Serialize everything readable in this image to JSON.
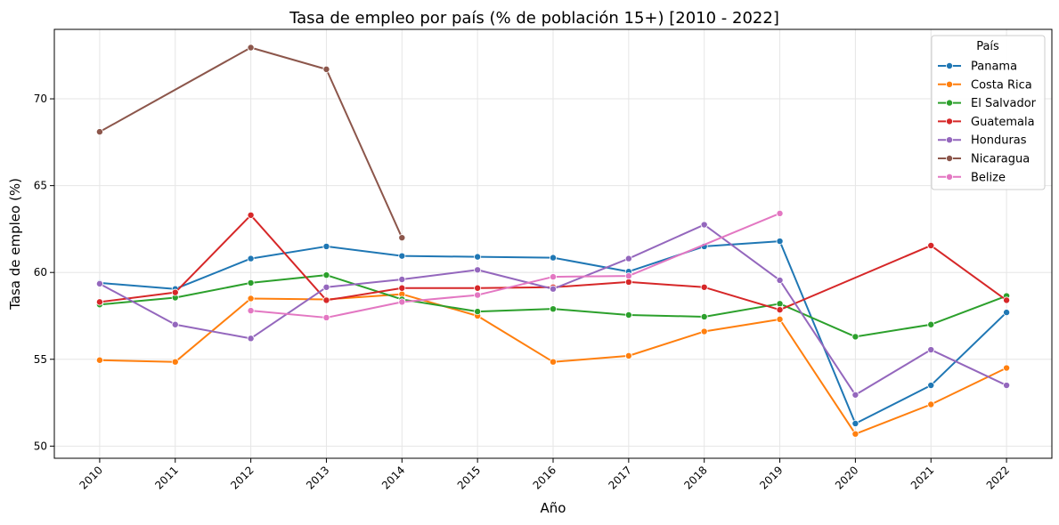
{
  "chart_data": {
    "type": "line",
    "title": "Tasa de empleo por país (% de población 15+) [2010 - 2022]",
    "xlabel": "Año",
    "ylabel": "Tasa de empleo (%)",
    "x": [
      2010,
      2011,
      2012,
      2013,
      2014,
      2015,
      2016,
      2017,
      2018,
      2019,
      2020,
      2021,
      2022
    ],
    "xlim": [
      2009.4,
      2022.6
    ],
    "ylim": [
      49.3,
      74.0
    ],
    "yticks": [
      50,
      55,
      60,
      65,
      70
    ],
    "grid": true,
    "legend": {
      "title": "País",
      "position": "top-right"
    },
    "series": [
      {
        "name": "Panama",
        "color": "#1f77b4",
        "values": [
          59.4,
          59.05,
          60.8,
          61.5,
          60.95,
          60.9,
          60.85,
          60.05,
          61.5,
          61.8,
          51.3,
          53.5,
          57.7
        ]
      },
      {
        "name": "Costa Rica",
        "color": "#ff7f0e",
        "values": [
          54.95,
          54.85,
          58.5,
          58.45,
          58.75,
          57.5,
          54.85,
          55.2,
          56.6,
          57.3,
          50.7,
          52.4,
          54.5
        ]
      },
      {
        "name": "El Salvador",
        "color": "#2ca02c",
        "values": [
          58.15,
          58.55,
          59.4,
          59.85,
          58.45,
          57.75,
          57.9,
          57.55,
          57.45,
          58.2,
          56.3,
          57.0,
          58.65
        ]
      },
      {
        "name": "Guatemala",
        "color": "#d62728",
        "values": [
          58.3,
          58.85,
          63.3,
          58.4,
          59.1,
          59.1,
          59.15,
          59.45,
          59.15,
          57.85,
          null,
          61.55,
          58.4
        ]
      },
      {
        "name": "Honduras",
        "color": "#9467bd",
        "values": [
          59.35,
          57.0,
          56.2,
          59.15,
          59.6,
          60.15,
          59.05,
          60.8,
          62.75,
          59.55,
          52.95,
          55.55,
          53.5
        ]
      },
      {
        "name": "Nicaragua",
        "color": "#8c564b",
        "values": [
          68.1,
          null,
          72.95,
          71.7,
          62.0,
          null,
          null,
          null,
          null,
          null,
          null,
          null,
          null
        ]
      },
      {
        "name": "Belize",
        "color": "#e377c2",
        "values": [
          null,
          null,
          57.8,
          57.4,
          58.3,
          58.7,
          59.75,
          59.8,
          null,
          63.4,
          null,
          null,
          null
        ]
      }
    ]
  }
}
